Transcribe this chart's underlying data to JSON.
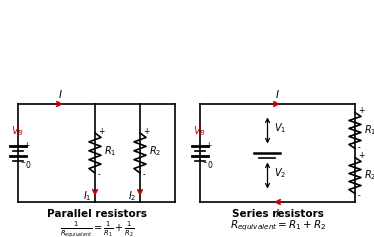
{
  "bg_color": "#ffffff",
  "line_color": "#000000",
  "red_color": "#cc0000",
  "figsize": [
    3.74,
    2.37
  ],
  "dpi": 100,
  "title_parallel": "Parallel resistors",
  "title_series": "Series resistors"
}
